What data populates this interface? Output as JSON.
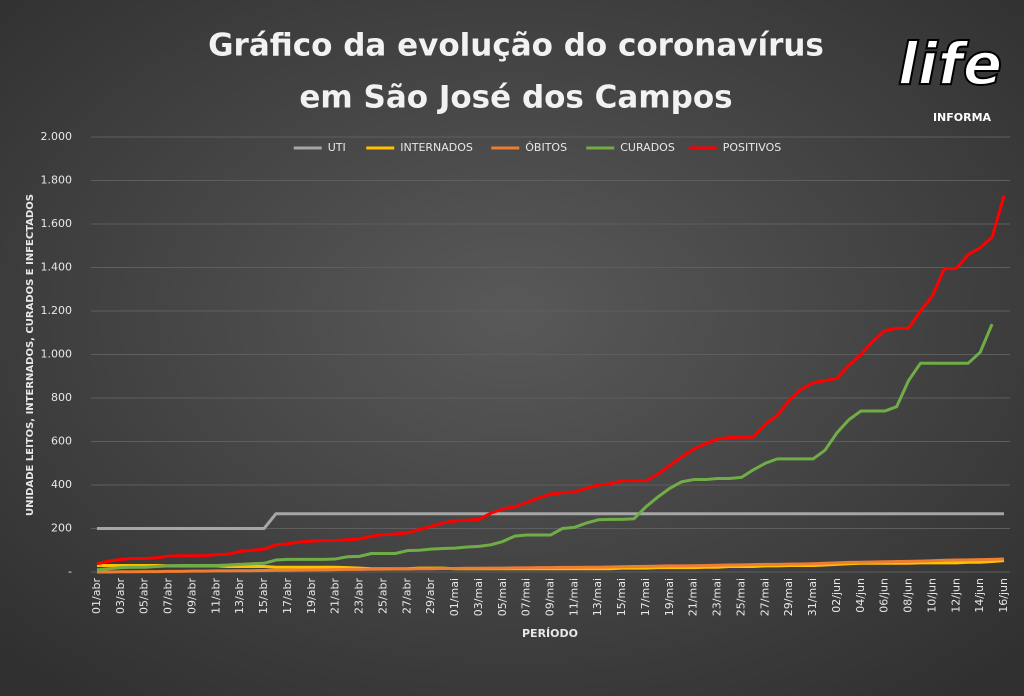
{
  "chart_data": {
    "type": "line",
    "title": [
      "Gráfico da evolução do coronavírus",
      "em São José dos Campos"
    ],
    "logo": {
      "name": "life",
      "sub": "INFORMA"
    },
    "x_label": "PERÍODO",
    "y_label": "UNIDADE LEITOS, INTERNADOS, CURADOS E INFECTADOS",
    "categories": [
      "01/abr",
      null,
      "03/abr",
      null,
      "05/abr",
      null,
      "07/abr",
      null,
      "09/abr",
      null,
      "11/abr",
      null,
      "13/abr",
      null,
      "15/abr",
      null,
      "17/abr",
      null,
      "19/abr",
      null,
      "21/abr",
      null,
      "23/abr",
      null,
      "25/abr",
      null,
      "27/abr",
      null,
      "29/abr",
      null,
      "01/mai",
      null,
      "03/mai",
      null,
      "05/mai",
      null,
      "07/mai",
      null,
      "09/mai",
      null,
      "11/mai",
      null,
      "13/mai",
      null,
      "15/mai",
      null,
      "17/mai",
      null,
      "19/mai",
      null,
      "21/mai",
      null,
      "23/mai",
      null,
      "25/mai",
      null,
      "27/mai",
      null,
      "29/mai",
      null,
      "31/mai",
      null,
      "02/jun",
      null,
      "04/jun",
      null,
      "06/jun",
      null,
      "08/jun",
      null,
      "10/jun",
      null,
      "12/jun",
      null,
      "14/jun",
      null,
      "16/jun"
    ],
    "series": [
      {
        "name": "UTI",
        "color": "#a6a6a6",
        "values": [
          200,
          200,
          200,
          200,
          200,
          200,
          200,
          200,
          200,
          200,
          200,
          200,
          200,
          200,
          200,
          268,
          268,
          268,
          268,
          268,
          268,
          268,
          268,
          268,
          268,
          268,
          268,
          268,
          268,
          268,
          268,
          268,
          268,
          268,
          268,
          268,
          268,
          268,
          268,
          268,
          268,
          268,
          268,
          268,
          268,
          268,
          268,
          268,
          268,
          268,
          268,
          268,
          268,
          268,
          268,
          268,
          268,
          268,
          268,
          268,
          268,
          268,
          268,
          268,
          268,
          268,
          268,
          268,
          268,
          268,
          268,
          268,
          268,
          268,
          268,
          268,
          268
        ]
      },
      {
        "name": "INTERNADOS",
        "color": "#ffc000",
        "values": [
          30,
          30,
          30,
          30,
          30,
          30,
          28,
          28,
          28,
          28,
          28,
          25,
          25,
          25,
          25,
          22,
          22,
          22,
          22,
          22,
          22,
          20,
          18,
          15,
          15,
          15,
          15,
          18,
          18,
          18,
          15,
          15,
          15,
          15,
          15,
          15,
          15,
          15,
          15,
          15,
          15,
          15,
          15,
          15,
          18,
          18,
          18,
          20,
          20,
          20,
          20,
          22,
          22,
          25,
          25,
          25,
          28,
          28,
          30,
          30,
          30,
          32,
          35,
          38,
          40,
          40,
          40,
          40,
          40,
          42,
          42,
          42,
          42,
          45,
          45,
          48,
          52
        ]
      },
      {
        "name": "ÓBITOS",
        "color": "#ed7d31",
        "values": [
          0,
          0,
          1,
          1,
          2,
          2,
          3,
          3,
          4,
          4,
          5,
          5,
          6,
          6,
          7,
          8,
          8,
          9,
          10,
          10,
          11,
          12,
          12,
          13,
          13,
          14,
          14,
          15,
          15,
          16,
          16,
          17,
          17,
          18,
          18,
          19,
          19,
          20,
          20,
          21,
          21,
          22,
          22,
          23,
          24,
          25,
          26,
          27,
          28,
          28,
          29,
          30,
          31,
          32,
          33,
          34,
          35,
          35,
          36,
          37,
          38,
          40,
          42,
          44,
          45,
          46,
          47,
          48,
          49,
          50,
          52,
          54,
          55,
          56,
          57,
          58,
          60
        ]
      },
      {
        "name": "CURADOS",
        "color": "#70ad47",
        "values": [
          10,
          15,
          20,
          22,
          22,
          25,
          28,
          30,
          30,
          30,
          30,
          32,
          35,
          38,
          40,
          55,
          58,
          58,
          58,
          58,
          60,
          70,
          72,
          85,
          85,
          85,
          98,
          100,
          105,
          108,
          110,
          115,
          118,
          125,
          140,
          165,
          170,
          170,
          170,
          200,
          205,
          225,
          240,
          242,
          242,
          245,
          300,
          345,
          385,
          415,
          425,
          425,
          430,
          430,
          435,
          470,
          500,
          520,
          520,
          520,
          520,
          560,
          640,
          700,
          740,
          740,
          740,
          760,
          880,
          960,
          960,
          960,
          960,
          960,
          1010,
          1140,
          null
        ]
      },
      {
        "name": "POSITIVOS",
        "color": "#ff0000",
        "values": [
          38,
          50,
          58,
          62,
          62,
          65,
          73,
          75,
          75,
          75,
          80,
          82,
          95,
          100,
          105,
          125,
          130,
          138,
          142,
          145,
          145,
          148,
          152,
          165,
          172,
          175,
          180,
          195,
          210,
          225,
          235,
          238,
          242,
          270,
          290,
          300,
          320,
          340,
          358,
          365,
          368,
          385,
          400,
          405,
          420,
          420,
          420,
          450,
          490,
          530,
          565,
          590,
          612,
          618,
          620,
          620,
          680,
          720,
          790,
          840,
          870,
          880,
          890,
          950,
          1000,
          1060,
          1110,
          1120,
          1120,
          1200,
          1270,
          1395,
          1395,
          1460,
          1490,
          1540,
          1730
        ]
      }
    ],
    "ylim": [
      0,
      2000
    ],
    "yticks": [
      {
        "value": 0,
        "label": "-"
      },
      200,
      400,
      600,
      800,
      {
        "value": 1000,
        "label": "1.000"
      },
      {
        "value": 1200,
        "label": "1.200"
      },
      {
        "value": 1400,
        "label": "1.400"
      },
      {
        "value": 1600,
        "label": "1.600"
      },
      {
        "value": 1800,
        "label": "1.800"
      },
      {
        "value": 2000,
        "label": "2.000"
      }
    ],
    "grid": true,
    "legend": "top"
  }
}
